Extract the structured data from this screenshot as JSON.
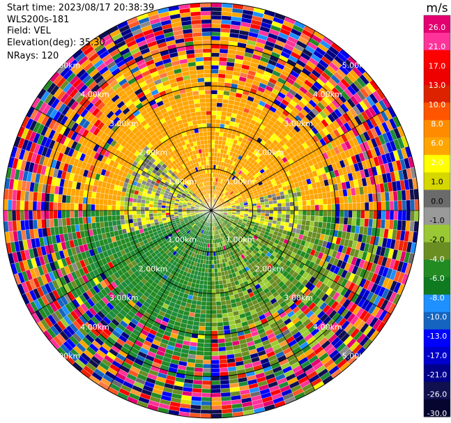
{
  "meta": {
    "start_time": "Start time: 2023/08/17 20:38:39",
    "instrument": "WLS200s-181",
    "field": "Field: VEL",
    "elevation": "Elevation(deg): 35.30",
    "nrays": "NRays: 120"
  },
  "chart_data": {
    "type": "heatmap",
    "subtype": "ppi_radial_velocity",
    "field": "VEL",
    "units": "m/s",
    "n_rays": 120,
    "elevation_deg": 35.3,
    "range_rings_km": [
      {
        "value": 1.0,
        "label": "1.00km"
      },
      {
        "value": 2.0,
        "label": "2.00km"
      },
      {
        "value": 3.0,
        "label": "3.00km"
      },
      {
        "value": 4.0,
        "label": "4.00km"
      },
      {
        "value": 5.0,
        "label": "5.00km"
      }
    ],
    "max_range_km": 5.0,
    "spoke_angles_deg": [
      0,
      30,
      60,
      90,
      120,
      150,
      180,
      210,
      240,
      270,
      300,
      330
    ],
    "sector_means_ms": [
      {
        "from_deg": 270,
        "to_deg": 360,
        "mean": 3.5
      },
      {
        "from_deg": 0,
        "to_deg": 90,
        "mean": 3.5
      },
      {
        "from_deg": 90,
        "to_deg": 180,
        "mean": -3.0
      },
      {
        "from_deg": 180,
        "to_deg": 270,
        "mean": -5.5
      }
    ],
    "colorbar": {
      "label": "m/s",
      "ticks": [
        "26.0",
        "21.0",
        "17.0",
        "13.0",
        "10.0",
        "8.0",
        "6.0",
        "2.0",
        "1.0",
        "0.0",
        "-1.0",
        "-2.0",
        "-4.0",
        "-6.0",
        "-8.0",
        "-10.0",
        "-13.0",
        "-17.0",
        "-21.0",
        "-26.0",
        "-30.0"
      ],
      "colors": [
        "#e40070",
        "#ff3399",
        "#ff0000",
        "#ee0000",
        "#dd2200",
        "#ff5500",
        "#ff8c00",
        "#ffa500",
        "#ffff00",
        "#d7d700",
        "#6b6b6b",
        "#999999",
        "#9ac834",
        "#6b8e23",
        "#228b22",
        "#0f7a20",
        "#1e90ff",
        "#1565c0",
        "#0000ff",
        "#0000cd",
        "#00008b",
        "#101050",
        "#050530"
      ]
    }
  }
}
